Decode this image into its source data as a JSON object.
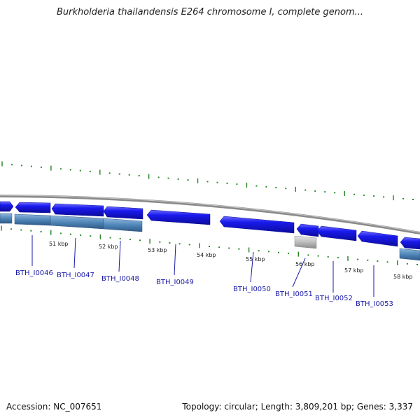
{
  "title": "Burkholderia thailandensis E264 chromosome I, complete genom...",
  "footer": {
    "accession": "Accession: NC_007651",
    "summary": "Topology: circular; Length: 3,809,201 bp; Genes: 3,337"
  },
  "colors": {
    "backbone": "#8a8a8a",
    "forward_gene": "#1a1aee",
    "reverse_gene": "#4f86b8",
    "pseudo_gene": "#b8b8b8",
    "tick": "#2a8a2a",
    "label": "#1a1aa8"
  },
  "kbp_ticks": [
    "51 kbp",
    "52 kbp",
    "53 kbp",
    "54 kbp",
    "55 kbp",
    "56 kbp",
    "57 kbp",
    "58 kbp"
  ],
  "genes": [
    {
      "id": "BTH_I0046",
      "label": "BTH_I0046"
    },
    {
      "id": "BTH_I0047",
      "label": "BTH_I0047"
    },
    {
      "id": "BTH_I0048",
      "label": "BTH_I0048"
    },
    {
      "id": "BTH_I0049",
      "label": "BTH_I0049"
    },
    {
      "id": "BTH_I0050",
      "label": "BTH_I0050"
    },
    {
      "id": "BTH_I0051",
      "label": "BTH_I0051"
    },
    {
      "id": "BTH_I0052",
      "label": "BTH_I0052"
    },
    {
      "id": "BTH_I0053",
      "label": "BTH_I0053"
    }
  ]
}
